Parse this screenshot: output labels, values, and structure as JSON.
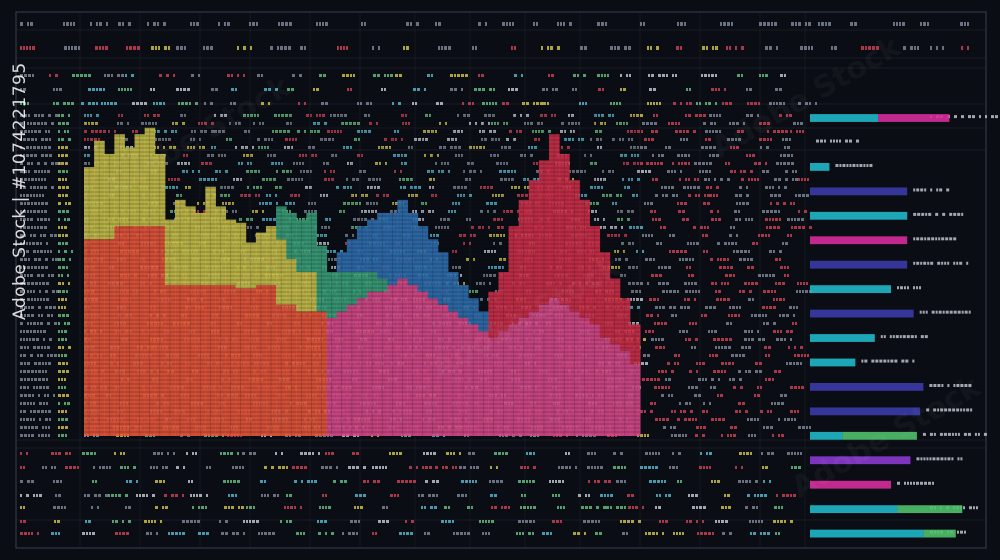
{
  "colors": {
    "background": "#0b0d14",
    "grid": "#3a4050",
    "text_dim": "#8a93a6",
    "text_yellow": "#e6d44a",
    "text_red": "#e0455a",
    "text_green": "#6fd08a",
    "text_cyan": "#5ec8e0",
    "text_white": "#d6dae4"
  },
  "watermark": {
    "side_text": "Adobe Stock | #1074221795"
  },
  "chart_data": [
    {
      "type": "bar",
      "description_role": "main stacked column panel (illegible numeric labels rendered as texture)",
      "x": [
        1,
        2,
        3,
        4,
        5,
        6,
        7,
        8,
        9,
        10,
        11,
        12,
        13,
        14,
        15,
        16,
        17,
        18,
        19,
        20,
        21,
        22,
        23,
        24,
        25,
        26,
        27,
        28,
        29,
        30,
        31,
        32,
        33,
        34,
        35,
        36,
        37,
        38,
        39,
        40,
        41,
        42,
        43,
        44,
        45,
        46,
        47,
        48,
        49,
        50,
        51,
        52,
        53,
        54,
        55
      ],
      "ylim": [
        0,
        100
      ],
      "series": [
        {
          "color": "#e8573a",
          "values": [
            60,
            60,
            60,
            64,
            64,
            64,
            64,
            64,
            46,
            46,
            46,
            46,
            46,
            46,
            46,
            45,
            45,
            46,
            46,
            40,
            40,
            38,
            38,
            38,
            0,
            0,
            0,
            0,
            0,
            0,
            0,
            0,
            0,
            0,
            0,
            0,
            0,
            0,
            0,
            0,
            0,
            0,
            0,
            0,
            0,
            0,
            0,
            0,
            0,
            0,
            0,
            0,
            0,
            0,
            0
          ]
        },
        {
          "color": "#c9c24a",
          "values": [
            22,
            30,
            26,
            28,
            24,
            28,
            30,
            22,
            20,
            26,
            24,
            22,
            30,
            24,
            20,
            20,
            14,
            16,
            18,
            20,
            14,
            12,
            12,
            0,
            0,
            0,
            0,
            0,
            0,
            0,
            0,
            0,
            0,
            0,
            0,
            0,
            0,
            0,
            0,
            0,
            0,
            0,
            0,
            0,
            0,
            0,
            0,
            0,
            0,
            0,
            0,
            0,
            0,
            0,
            0
          ]
        },
        {
          "color": "#d84a8a",
          "values": [
            0,
            0,
            0,
            0,
            0,
            0,
            0,
            0,
            0,
            0,
            0,
            0,
            0,
            0,
            0,
            0,
            0,
            0,
            0,
            0,
            0,
            0,
            0,
            0,
            36,
            38,
            40,
            42,
            44,
            44,
            46,
            48,
            46,
            44,
            42,
            40,
            38,
            36,
            34,
            32,
            30,
            32,
            34,
            36,
            38,
            40,
            42,
            40,
            38,
            36,
            34,
            30,
            28,
            26,
            22
          ]
        },
        {
          "color": "#3aa07a",
          "values": [
            0,
            0,
            0,
            0,
            0,
            0,
            0,
            0,
            0,
            0,
            0,
            0,
            0,
            0,
            0,
            0,
            0,
            0,
            0,
            10,
            14,
            16,
            18,
            20,
            14,
            12,
            10,
            8,
            6,
            4,
            0,
            0,
            0,
            0,
            0,
            0,
            0,
            0,
            0,
            0,
            0,
            0,
            0,
            0,
            0,
            0,
            0,
            0,
            0,
            0,
            0,
            0,
            0,
            0,
            0
          ]
        },
        {
          "color": "#2f6fb0",
          "values": [
            0,
            0,
            0,
            0,
            0,
            0,
            0,
            0,
            0,
            0,
            0,
            0,
            0,
            0,
            0,
            0,
            0,
            0,
            0,
            0,
            0,
            0,
            0,
            0,
            0,
            6,
            10,
            14,
            16,
            20,
            22,
            24,
            22,
            20,
            18,
            16,
            12,
            10,
            8,
            6,
            0,
            0,
            0,
            0,
            0,
            0,
            0,
            0,
            0,
            0,
            0,
            0,
            0,
            0,
            0
          ]
        },
        {
          "color": "#d0304a",
          "values": [
            0,
            0,
            0,
            0,
            0,
            0,
            0,
            0,
            0,
            0,
            0,
            0,
            0,
            0,
            0,
            0,
            0,
            0,
            0,
            0,
            0,
            0,
            0,
            0,
            0,
            0,
            0,
            0,
            0,
            0,
            0,
            0,
            0,
            0,
            0,
            0,
            0,
            0,
            0,
            0,
            14,
            18,
            30,
            36,
            40,
            44,
            50,
            46,
            40,
            36,
            30,
            26,
            20,
            16,
            12
          ]
        }
      ]
    },
    {
      "type": "bar",
      "description_role": "right horizontal bar panel",
      "categories": [
        "1",
        "2",
        "3",
        "4",
        "5",
        "6",
        "7",
        "8",
        "9",
        "10",
        "11",
        "12",
        "13",
        "14",
        "15",
        "16",
        "17",
        "18"
      ],
      "xlim": [
        0,
        100
      ],
      "series": [
        {
          "color": "#1fb8c8",
          "values": [
            42,
            0,
            12,
            0,
            60,
            0,
            0,
            50,
            0,
            40,
            28,
            0,
            0,
            20,
            0,
            0,
            54,
            70
          ]
        },
        {
          "color": "#d62c9c",
          "values": [
            44,
            0,
            0,
            0,
            0,
            60,
            0,
            0,
            0,
            0,
            0,
            0,
            0,
            0,
            0,
            50,
            0,
            0
          ]
        },
        {
          "color": "#3a3aa8",
          "values": [
            0,
            0,
            0,
            60,
            0,
            0,
            60,
            0,
            64,
            0,
            0,
            70,
            68,
            0,
            0,
            0,
            0,
            0
          ]
        },
        {
          "color": "#4fc06a",
          "values": [
            0,
            0,
            0,
            0,
            0,
            0,
            0,
            0,
            0,
            0,
            0,
            0,
            0,
            46,
            0,
            0,
            40,
            20
          ]
        },
        {
          "color": "#8a3ad0",
          "values": [
            0,
            0,
            0,
            0,
            0,
            0,
            0,
            0,
            0,
            0,
            0,
            0,
            0,
            0,
            62,
            0,
            0,
            0
          ]
        }
      ]
    }
  ]
}
